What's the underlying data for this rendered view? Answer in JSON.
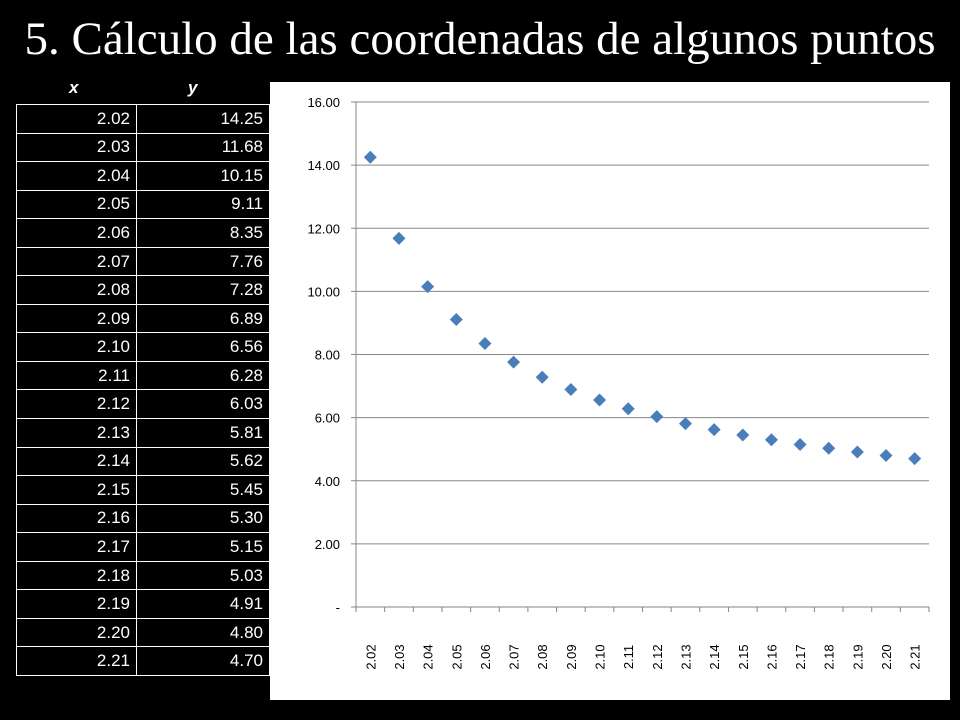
{
  "slide": {
    "title": "5. Cálculo de las coordenadas de algunos puntos"
  },
  "table": {
    "headers": {
      "x": "x",
      "y": "y"
    },
    "rows": [
      {
        "x": "2.02",
        "y": "14.25"
      },
      {
        "x": "2.03",
        "y": "11.68"
      },
      {
        "x": "2.04",
        "y": "10.15"
      },
      {
        "x": "2.05",
        "y": "9.11"
      },
      {
        "x": "2.06",
        "y": "8.35"
      },
      {
        "x": "2.07",
        "y": "7.76"
      },
      {
        "x": "2.08",
        "y": "7.28"
      },
      {
        "x": "2.09",
        "y": "6.89"
      },
      {
        "x": "2.10",
        "y": "6.56"
      },
      {
        "x": "2.11",
        "y": "6.28"
      },
      {
        "x": "2.12",
        "y": "6.03"
      },
      {
        "x": "2.13",
        "y": "5.81"
      },
      {
        "x": "2.14",
        "y": "5.62"
      },
      {
        "x": "2.15",
        "y": "5.45"
      },
      {
        "x": "2.16",
        "y": "5.30"
      },
      {
        "x": "2.17",
        "y": "5.15"
      },
      {
        "x": "2.18",
        "y": "5.03"
      },
      {
        "x": "2.19",
        "y": "4.91"
      },
      {
        "x": "2.20",
        "y": "4.80"
      },
      {
        "x": "2.21",
        "y": "4.70"
      }
    ]
  },
  "chart_data": {
    "type": "scatter",
    "title": "",
    "xlabel": "",
    "ylabel": "",
    "categories": [
      "2.02",
      "2.03",
      "2.04",
      "2.05",
      "2.06",
      "2.07",
      "2.08",
      "2.09",
      "2.10",
      "2.11",
      "2.12",
      "2.13",
      "2.14",
      "2.15",
      "2.16",
      "2.17",
      "2.18",
      "2.19",
      "2.20",
      "2.21"
    ],
    "series": [
      {
        "values": [
          14.25,
          11.68,
          10.15,
          9.11,
          8.35,
          7.76,
          7.28,
          6.89,
          6.56,
          6.28,
          6.03,
          5.81,
          5.62,
          5.45,
          5.3,
          5.15,
          5.03,
          4.91,
          4.8,
          4.7
        ]
      }
    ],
    "ylim": [
      0,
      16
    ],
    "y_ticks": [
      0,
      2,
      4,
      6,
      8,
      10,
      12,
      14,
      16
    ],
    "y_tick_labels": [
      "-",
      "2.00",
      "4.00",
      "6.00",
      "8.00",
      "10.00",
      "12.00",
      "14.00",
      "16.00"
    ],
    "grid": true,
    "legend": "none",
    "marker": "diamond",
    "colors": {
      "marker": "#4a7ebb",
      "grid": "#868686",
      "axis": "#868686"
    }
  }
}
